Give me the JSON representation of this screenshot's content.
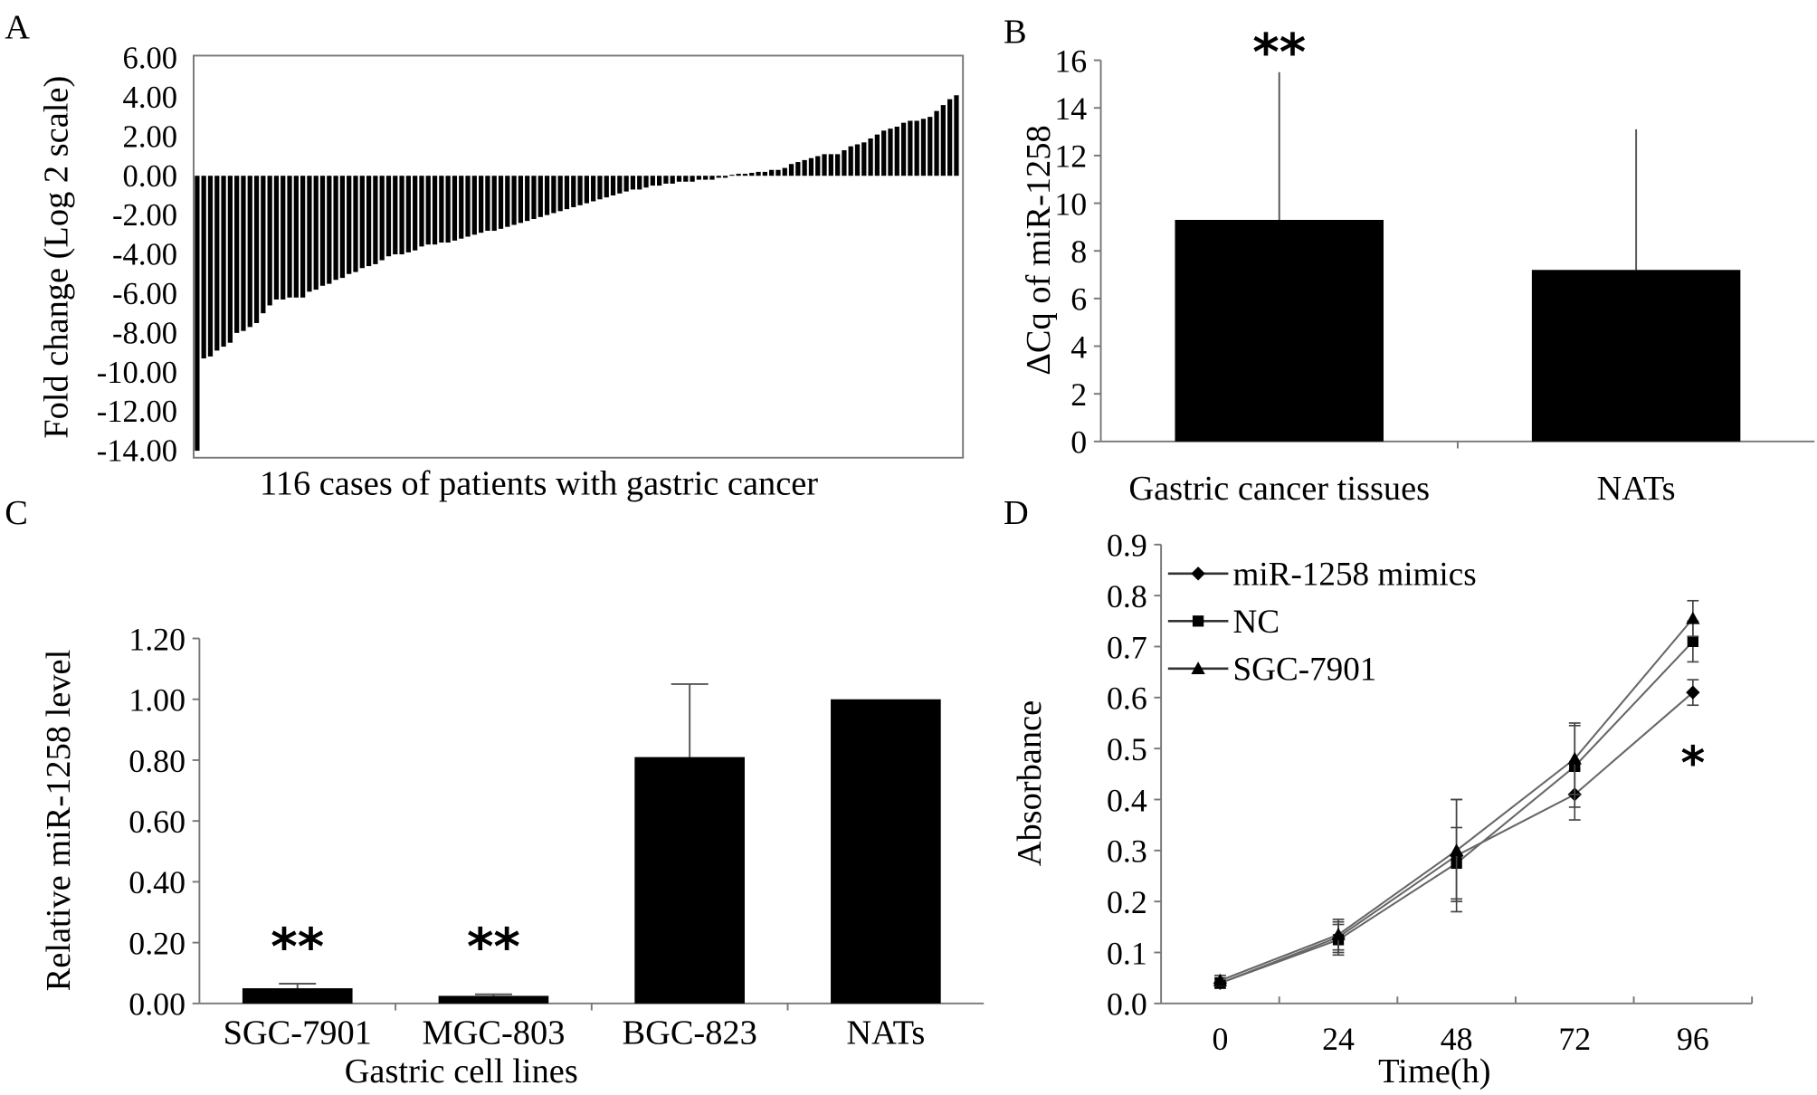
{
  "chart_data": [
    {
      "panel": "A",
      "type": "bar",
      "title": "",
      "xlabel": "116 cases of patients with gastric cancer",
      "ylabel": "Fold change (Log 2 scale)",
      "ylim": [
        -14,
        6
      ],
      "yticks": [
        "6.00",
        "4.00",
        "2.00",
        "0.00",
        "-2.00",
        "-4.00",
        "-6.00",
        "-8.00",
        "-10.00",
        "-12.00",
        "-14.00"
      ],
      "values": [
        -14,
        -9.3,
        -9.2,
        -8.9,
        -8.7,
        -8.5,
        -8.0,
        -7.9,
        -7.7,
        -7.5,
        -7.0,
        -6.6,
        -6.3,
        -6.3,
        -6.2,
        -6.2,
        -6.2,
        -5.9,
        -5.8,
        -5.6,
        -5.5,
        -5.3,
        -5.2,
        -5.0,
        -4.9,
        -4.7,
        -4.6,
        -4.5,
        -4.3,
        -4.1,
        -4.0,
        -4.0,
        -3.9,
        -3.8,
        -3.6,
        -3.5,
        -3.5,
        -3.4,
        -3.4,
        -3.3,
        -3.2,
        -3.1,
        -3.0,
        -2.9,
        -2.8,
        -2.8,
        -2.7,
        -2.6,
        -2.5,
        -2.4,
        -2.3,
        -2.2,
        -2.1,
        -2.0,
        -1.9,
        -1.8,
        -1.7,
        -1.6,
        -1.5,
        -1.4,
        -1.3,
        -1.2,
        -1.1,
        -1.0,
        -0.9,
        -0.8,
        -0.7,
        -0.7,
        -0.6,
        -0.5,
        -0.5,
        -0.4,
        -0.4,
        -0.3,
        -0.3,
        -0.3,
        -0.2,
        -0.2,
        -0.2,
        -0.1,
        -0.1,
        0.05,
        0.1,
        0.1,
        0.15,
        0.2,
        0.2,
        0.3,
        0.3,
        0.4,
        0.6,
        0.7,
        0.8,
        0.9,
        1.0,
        1.1,
        1.1,
        1.1,
        1.3,
        1.5,
        1.6,
        1.7,
        1.9,
        2.1,
        2.3,
        2.4,
        2.5,
        2.7,
        2.8,
        2.8,
        2.9,
        3.0,
        3.3,
        3.6,
        3.9,
        4.1
      ]
    },
    {
      "panel": "B",
      "type": "bar",
      "title": "",
      "xlabel": "",
      "ylabel": "ΔCq of miR-1258",
      "ylim": [
        0,
        16
      ],
      "yticks": [
        "0",
        "2",
        "4",
        "6",
        "8",
        "10",
        "12",
        "14",
        "16"
      ],
      "categories": [
        "Gastric cancer tissues",
        "NATs"
      ],
      "values": [
        9.3,
        7.2
      ],
      "error_upper": [
        15.5,
        13.1
      ],
      "annotations": [
        "**",
        ""
      ]
    },
    {
      "panel": "C",
      "type": "bar",
      "title": "",
      "xlabel": "Gastric cell lines",
      "ylabel": "Relative miR-1258 level",
      "ylim": [
        0,
        1.2
      ],
      "yticks": [
        "0.00",
        "0.20",
        "0.40",
        "0.60",
        "0.80",
        "1.00",
        "1.20"
      ],
      "categories": [
        "SGC-7901",
        "MGC-803",
        "BGC-823",
        "NATs"
      ],
      "values": [
        0.05,
        0.025,
        0.81,
        1.0
      ],
      "error_upper": [
        0.065,
        0.03,
        1.05,
        1.0
      ],
      "annotations": [
        "**",
        "**",
        "",
        ""
      ]
    },
    {
      "panel": "D",
      "type": "line",
      "title": "",
      "xlabel": "Time(h)",
      "ylabel": "Absorbance",
      "ylim": [
        0,
        0.9
      ],
      "yticks": [
        "0.0",
        "0.1",
        "0.2",
        "0.3",
        "0.4",
        "0.5",
        "0.6",
        "0.7",
        "0.8",
        "0.9"
      ],
      "x": [
        "0",
        "24",
        "48",
        "72",
        "96"
      ],
      "legend_position": "top-left",
      "series": [
        {
          "name": "miR-1258 mimics",
          "marker": "diamond",
          "values": [
            0.04,
            0.13,
            0.29,
            0.41,
            0.61
          ],
          "errors": [
            0.01,
            0.03,
            0.11,
            0.05,
            0.025
          ]
        },
        {
          "name": "NC",
          "marker": "square",
          "values": [
            0.04,
            0.125,
            0.275,
            0.465,
            0.71
          ],
          "errors": [
            0.01,
            0.03,
            0.07,
            0.08,
            0.04
          ]
        },
        {
          "name": "SGC-7901",
          "marker": "triangle",
          "values": [
            0.045,
            0.135,
            0.3,
            0.48,
            0.755
          ],
          "errors": [
            0.01,
            0.03,
            0.1,
            0.07,
            0.035
          ]
        }
      ],
      "annotations": [
        {
          "x": "96",
          "text": "*"
        }
      ]
    }
  ],
  "panel_labels": [
    "A",
    "B",
    "C",
    "D"
  ]
}
